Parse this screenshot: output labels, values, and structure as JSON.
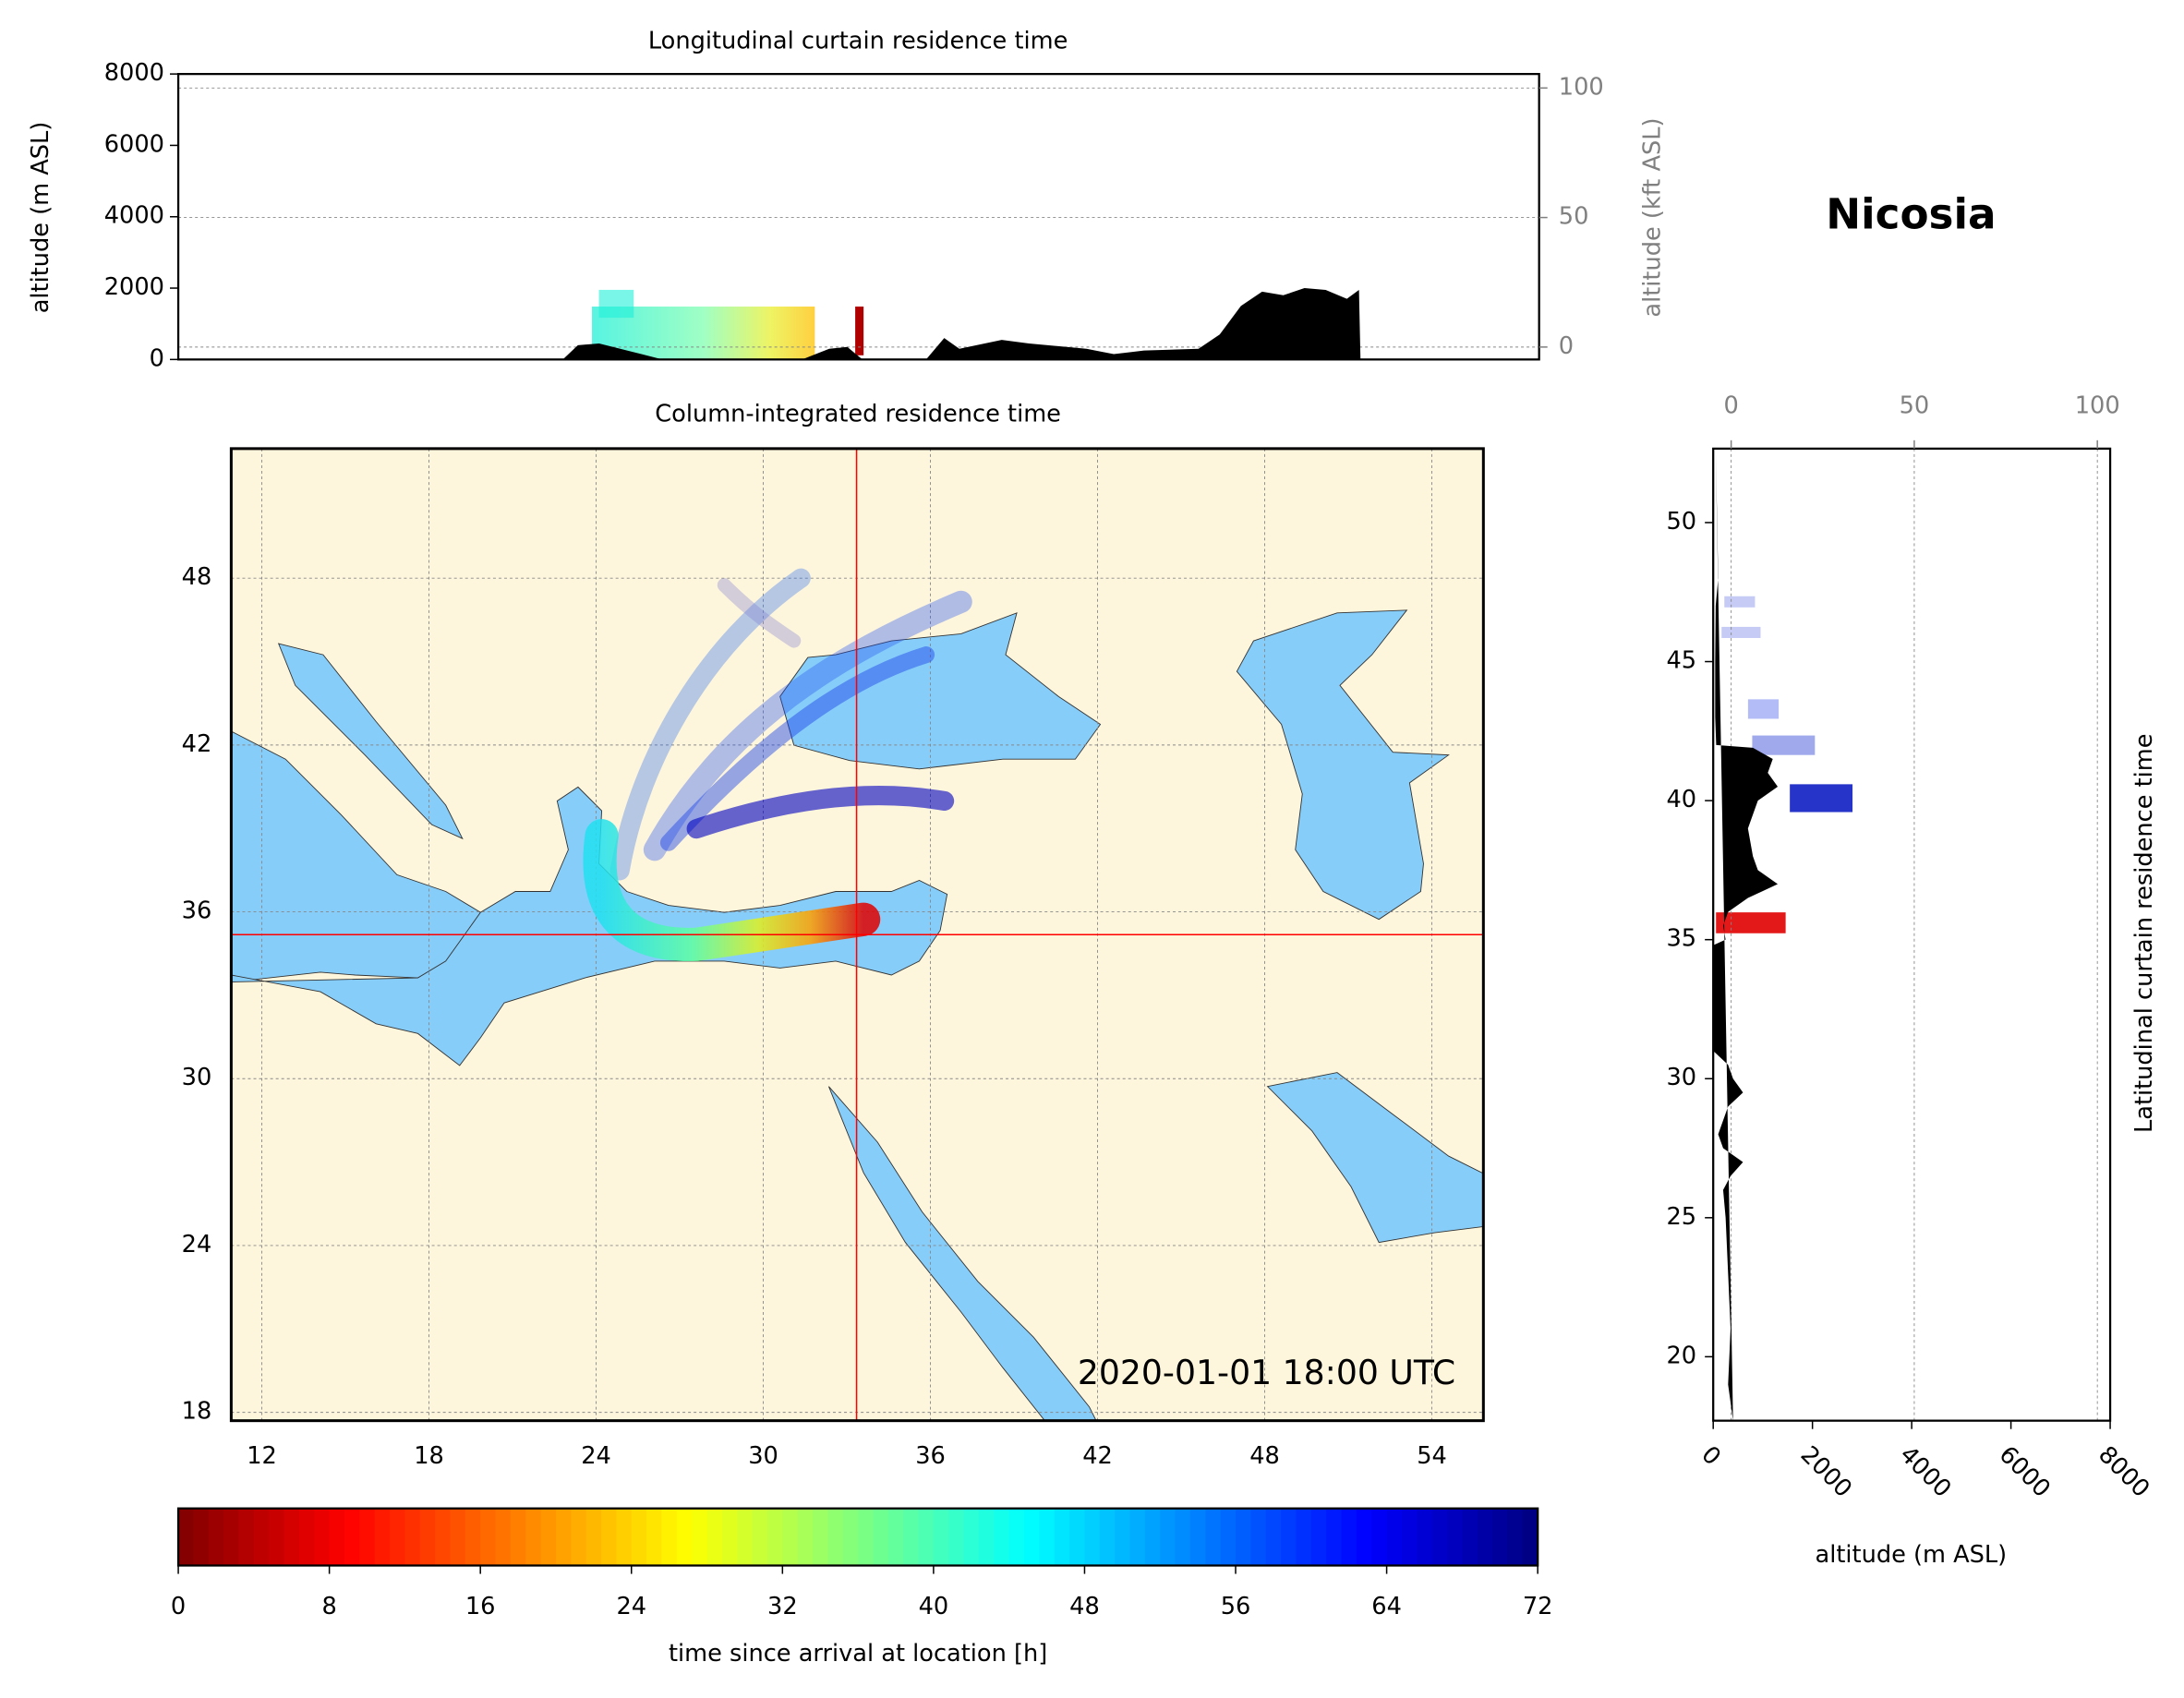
{
  "title": "Nicosia",
  "chart_data": [
    {
      "type": "area",
      "title": "Longitudinal curtain residence time",
      "ylabel": "altitude (m ASL)",
      "y2label": "altitude (kft ASL)",
      "xlim": [
        10.9,
        55.85
      ],
      "ylim": [
        0,
        8000
      ],
      "yticks": [
        0,
        2000,
        4000,
        6000,
        8000
      ],
      "y2lim": [
        -4.8,
        105.4
      ],
      "y2ticks": [
        0,
        50,
        100
      ],
      "grid": true,
      "color": "#000000",
      "x": [
        23.6,
        24.1,
        24.8,
        25.5,
        26.2,
        26.9,
        31.5,
        32.4,
        33.0,
        33.5,
        35.6,
        36.2,
        36.7,
        38.1,
        39.0,
        40.9,
        41.8,
        42.8,
        44.6,
        45.3,
        46.0,
        46.7,
        47.4,
        48.1,
        48.8,
        49.5,
        49.9,
        49.95
      ],
      "values": [
        0,
        400,
        450,
        300,
        150,
        0,
        0,
        300,
        350,
        0,
        0,
        600,
        300,
        550,
        450,
        300,
        150,
        250,
        300,
        700,
        1500,
        1900,
        1800,
        2000,
        1950,
        1700,
        1950,
        0
      ]
    },
    {
      "type": "map",
      "title": "Column-integrated residence time",
      "timestamp": "2020-01-01 18:00 UTC",
      "xlim": [
        10.9,
        55.85
      ],
      "ylim": [
        17.7,
        52.66
      ],
      "xticks": [
        12,
        18,
        24,
        30,
        36,
        42,
        48,
        54
      ],
      "yticks": [
        18,
        24,
        30,
        36,
        42,
        48
      ],
      "grid": true,
      "station": {
        "lon": 33.35,
        "lat": 35.18
      },
      "land_color": "#fef6dc",
      "sea_color": "#87cdf9",
      "marker_color": "#ff0000"
    },
    {
      "type": "area",
      "orientation": "horizontal",
      "ylabel": "Latitudinal curtain residence time",
      "xlabel": "altitude (m ASL)",
      "ylim": [
        17.7,
        52.66
      ],
      "yticks": [
        20,
        25,
        30,
        35,
        40,
        45,
        50
      ],
      "xlim": [
        0,
        8000
      ],
      "xticks": [
        0,
        2000,
        4000,
        6000,
        8000
      ],
      "x2lim": [
        -4.9,
        103.5
      ],
      "x2ticks": [
        0,
        50,
        100
      ],
      "grid": true,
      "color": "#000000",
      "y": [
        52.6,
        50,
        48,
        47,
        45,
        43,
        42,
        41.9,
        41.5,
        41,
        40.5,
        40,
        39,
        38,
        37.5,
        37,
        36.5,
        36,
        35.5,
        35,
        34.8,
        31,
        30.5,
        30,
        29.5,
        29,
        28,
        27.5,
        27,
        26.5,
        26,
        25,
        23,
        21,
        19,
        17.7
      ],
      "values": [
        50,
        80,
        100,
        50,
        40,
        40,
        60,
        800,
        1200,
        1100,
        1300,
        900,
        700,
        800,
        900,
        1300,
        700,
        300,
        200,
        250,
        0,
        0,
        300,
        400,
        600,
        300,
        100,
        200,
        600,
        350,
        200,
        250,
        300,
        350,
        300,
        400
      ]
    },
    {
      "type": "colorbar",
      "label": "time since arrival at location [h]",
      "xlim": [
        0,
        72
      ],
      "xticks": [
        0,
        8,
        16,
        24,
        32,
        40,
        48,
        56,
        64,
        72
      ],
      "colormap": "jet_r"
    }
  ]
}
